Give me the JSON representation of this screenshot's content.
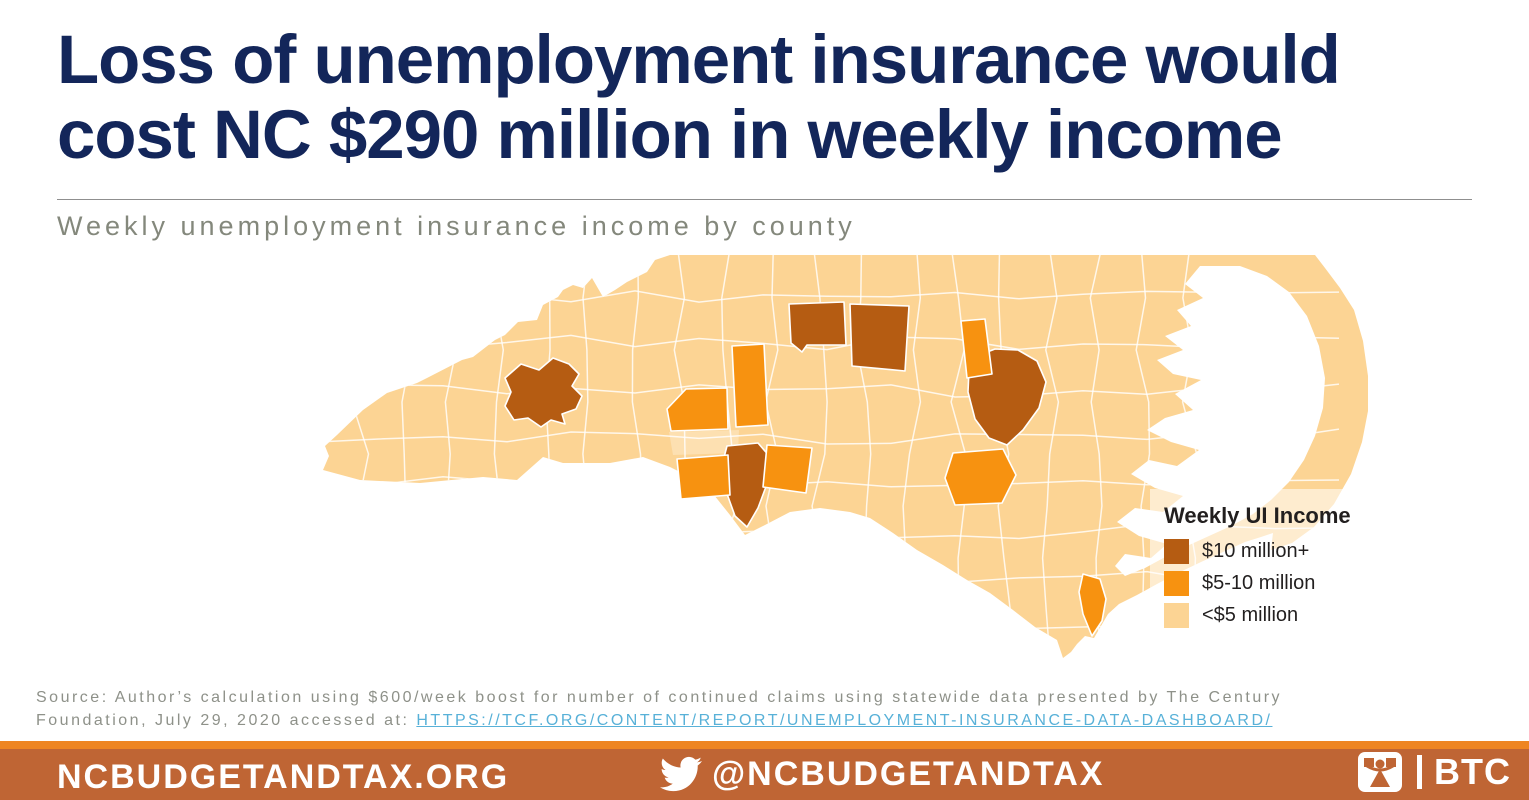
{
  "title": {
    "line1": "Loss of unemployment insurance would",
    "line2": "cost NC $290 million in weekly income"
  },
  "subtitle": "Weekly unemployment insurance income by county",
  "legend": {
    "title": "Weekly UI Income",
    "items": [
      {
        "label": "$10 million+",
        "tier": "dark"
      },
      {
        "label": "$5-10 million",
        "tier": "mid"
      },
      {
        "label": "<$5 million",
        "tier": "light"
      }
    ]
  },
  "map": {
    "counties": [
      {
        "id": "buncombe",
        "name": "Buncombe",
        "tier": "dark"
      },
      {
        "id": "forsyth",
        "name": "Forsyth",
        "tier": "dark"
      },
      {
        "id": "guilford",
        "name": "Guilford",
        "tier": "dark"
      },
      {
        "id": "wake",
        "name": "Wake",
        "tier": "dark"
      },
      {
        "id": "mecklenburg",
        "name": "Mecklenburg",
        "tier": "dark"
      },
      {
        "id": "catawba",
        "name": "Catawba",
        "tier": "mid"
      },
      {
        "id": "iredell",
        "name": "Iredell",
        "tier": "mid"
      },
      {
        "id": "gaston",
        "name": "Gaston",
        "tier": "mid"
      },
      {
        "id": "cabarrus",
        "name": "Cabarrus",
        "tier": "mid"
      },
      {
        "id": "durham",
        "name": "Durham",
        "tier": "mid"
      },
      {
        "id": "cumberland",
        "name": "Cumberland",
        "tier": "mid"
      },
      {
        "id": "newhanover",
        "name": "New Hanover",
        "tier": "mid"
      }
    ]
  },
  "source": {
    "line1": "Source: Author’s calculation using $600/week boost for number of continued claims using statewide data presented by The Century",
    "line2_prefix": "Foundation, July 29, 2020 accessed at: ",
    "link": "HTTPS://TCF.ORG/CONTENT/REPORT/UNEMPLOYMENT-INSURANCE-DATA-DASHBOARD/"
  },
  "footer": {
    "website": "NCBUDGETANDTAX.ORG",
    "twitter_handle": "@NCBUDGETANDTAX",
    "logo_text": "BTC"
  },
  "colors": {
    "dark": "#b55c12",
    "mid": "#f79210",
    "light": "#fcd494",
    "navy": "#13265a",
    "strip": "#ee8522",
    "bar": "#bf6534",
    "link": "#58b1d8"
  },
  "chart_data": {
    "type": "heatmap",
    "subtype": "choropleth-map",
    "region": "North Carolina, by county",
    "title": "Weekly unemployment insurance income by county",
    "headline_value": "$290 million in weekly income statewide",
    "units": "USD per week",
    "categories": [
      "$10 million+",
      "$5-10 million",
      "<$5 million"
    ],
    "series": [
      {
        "name": "$10 million+",
        "color": "#b55c12",
        "counties": [
          "Buncombe",
          "Forsyth",
          "Guilford",
          "Wake",
          "Mecklenburg"
        ]
      },
      {
        "name": "$5-10 million",
        "color": "#f79210",
        "counties": [
          "Catawba",
          "Iredell",
          "Gaston",
          "Cabarrus",
          "Durham",
          "Cumberland",
          "New Hanover"
        ]
      },
      {
        "name": "<$5 million",
        "color": "#fcd494",
        "counties": [
          "All other North Carolina counties"
        ]
      }
    ],
    "legend_position": "bottom-right",
    "grid": false
  }
}
